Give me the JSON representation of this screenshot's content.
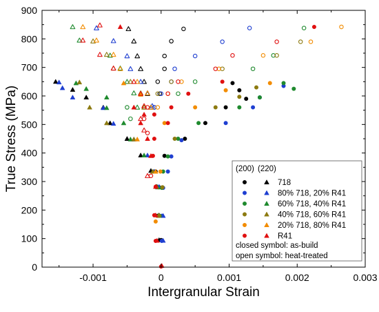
{
  "chart_data": {
    "type": "scatter",
    "xlabel": "Intergranular Strain",
    "ylabel": "True Stress (MPa)",
    "xlim": [
      -0.00175,
      0.003
    ],
    "ylim": [
      0,
      900
    ],
    "xticks": [
      -0.001,
      0,
      0.001,
      0.002,
      0.003
    ],
    "xtick_labels": [
      "-0.001",
      "0",
      "0.001",
      "0.002",
      "0.003"
    ],
    "yticks": [
      0,
      100,
      200,
      300,
      400,
      500,
      600,
      700,
      800,
      900
    ],
    "ytick_labels": [
      "0",
      "100",
      "200",
      "300",
      "400",
      "500",
      "600",
      "700",
      "800",
      "900"
    ],
    "grid": false,
    "legend_position": "bottom-right",
    "legend_header": [
      "(200)",
      "(220)"
    ],
    "legend_notes": [
      "closed symbol: as-build",
      "open symbol: heat-treated"
    ],
    "marker_meaning": {
      "circle": "(200)",
      "triangle": "(220)",
      "filled": "as-build",
      "open": "heat-treated"
    },
    "series": [
      {
        "name": "718",
        "color": "#000000",
        "filled": {
          "200": [
            [
              0.0,
              95
            ],
            [
              -5e-05,
              180
            ],
            [
              -3e-05,
              280
            ],
            [
              -8e-05,
              335
            ],
            [
              5e-05,
              390
            ],
            [
              0.00035,
              450
            ],
            [
              0.00065,
              505
            ],
            [
              0.00095,
              560
            ],
            [
              0.00125,
              590
            ],
            [
              0.00115,
              620
            ],
            [
              0.00105,
              645
            ]
          ],
          "220": [
            [
              -3e-05,
              95
            ],
            [
              -3e-05,
              182
            ],
            [
              -6e-05,
              282
            ],
            [
              -0.00015,
              338
            ],
            [
              -0.0003,
              392
            ],
            [
              -0.0005,
              450
            ],
            [
              -0.00075,
              505
            ],
            [
              -0.00085,
              560
            ],
            [
              -0.0011,
              595
            ],
            [
              -0.0013,
              622
            ],
            [
              -0.00155,
              650
            ]
          ]
        },
        "open": {
          "200": [
            [
              -0.0001,
              560
            ],
            [
              -2e-05,
              608
            ],
            [
              -5e-05,
              650
            ],
            [
              5e-05,
              695
            ],
            [
              5e-05,
              740
            ],
            [
              0.00015,
              792
            ],
            [
              0.00033,
              835
            ]
          ],
          "220": [
            [
              -0.00015,
              560
            ],
            [
              -0.0002,
              608
            ],
            [
              -0.00025,
              650
            ],
            [
              -0.0003,
              695
            ],
            [
              -0.00035,
              740
            ],
            [
              -0.0004,
              792
            ],
            [
              -0.00048,
              835
            ]
          ]
        }
      },
      {
        "name": "80% 718, 20% R41",
        "color": "#1f3fd1",
        "filled": {
          "200": [
            [
              1e-05,
              92
            ],
            [
              1e-05,
              180
            ],
            [
              3e-05,
              278
            ],
            [
              0.0001,
              335
            ],
            [
              0.00015,
              388
            ],
            [
              0.0003,
              445
            ],
            [
              0.00095,
              505
            ],
            [
              0.00135,
              560
            ],
            [
              0.00145,
              595
            ],
            [
              0.0018,
              635
            ]
          ],
          "220": [
            [
              3e-05,
              93
            ],
            [
              3e-05,
              180
            ],
            [
              -3e-05,
              282
            ],
            [
              -0.0001,
              335
            ],
            [
              -0.0002,
              392
            ],
            [
              -0.0004,
              448
            ],
            [
              -0.0007,
              503
            ],
            [
              -0.00085,
              558
            ],
            [
              -0.0013,
              595
            ],
            [
              -0.00145,
              628
            ],
            [
              -0.0015,
              648
            ]
          ]
        },
        "open": {
          "200": [
            [
              -0.0001,
              560
            ],
            [
              0.0,
              608
            ],
            [
              0.00015,
              650
            ],
            [
              0.0002,
              695
            ],
            [
              0.0005,
              740
            ],
            [
              0.0009,
              790
            ],
            [
              0.0013,
              838
            ]
          ],
          "220": [
            [
              -0.00013,
              565
            ],
            [
              -0.0002,
              610
            ],
            [
              -0.0003,
              650
            ],
            [
              -0.00045,
              695
            ],
            [
              -0.0005,
              740
            ],
            [
              -0.0007,
              793
            ],
            [
              -0.00095,
              838
            ]
          ]
        }
      },
      {
        "name": "60% 718, 40% R41",
        "color": "#1f8a2e",
        "filled": {
          "200": [
            [
              -2e-05,
              180
            ],
            [
              1e-05,
              278
            ],
            [
              3e-05,
              335
            ],
            [
              0.0001,
              388
            ],
            [
              0.00025,
              450
            ],
            [
              0.00055,
              505
            ],
            [
              0.00115,
              560
            ],
            [
              0.00145,
              595
            ],
            [
              0.00195,
              625
            ],
            [
              0.0018,
              645
            ]
          ],
          "220": [
            [
              -3e-05,
              180
            ],
            [
              -5e-05,
              280
            ],
            [
              -0.00012,
              335
            ],
            [
              -0.00025,
              392
            ],
            [
              -0.00045,
              448
            ],
            [
              -0.00055,
              505
            ],
            [
              -0.0008,
              558
            ],
            [
              -0.0008,
              595
            ],
            [
              -0.0011,
              625
            ],
            [
              -0.00125,
              645
            ]
          ]
        },
        "open": {
          "200": [
            [
              -0.00045,
              520
            ],
            [
              -0.0005,
              560
            ],
            [
              0.00025,
              608
            ],
            [
              0.0005,
              650
            ],
            [
              0.00135,
              695
            ],
            [
              0.00165,
              742
            ],
            [
              0.0021,
              838
            ]
          ],
          "220": [
            [
              -0.00035,
              560
            ],
            [
              -0.0004,
              610
            ],
            [
              -0.0005,
              650
            ],
            [
              -0.0006,
              697
            ],
            [
              -0.00075,
              742
            ],
            [
              -0.0012,
              795
            ],
            [
              -0.0013,
              842
            ]
          ]
        }
      },
      {
        "name": "40% 718, 60% R41",
        "color": "#8c7a10",
        "filled": {
          "200": [
            [
              -3e-05,
              180
            ],
            [
              2e-05,
              280
            ],
            [
              0.0002,
              450
            ],
            [
              0.0008,
              560
            ],
            [
              0.00115,
              597
            ],
            [
              0.0014,
              630
            ]
          ],
          "220": [
            [
              -4e-05,
              180
            ],
            [
              -7e-05,
              282
            ],
            [
              -0.00012,
              335
            ],
            [
              -0.0004,
              448
            ],
            [
              -0.0008,
              505
            ],
            [
              -0.00105,
              560
            ],
            [
              -0.0012,
              648
            ]
          ]
        },
        "open": {
          "200": [
            [
              -0.00025,
              560
            ],
            [
              -5e-05,
              608
            ],
            [
              0.00015,
              650
            ],
            [
              0.0009,
              695
            ],
            [
              0.0017,
              742
            ],
            [
              0.00205,
              790
            ]
          ],
          "220": [
            [
              -0.00025,
              560
            ],
            [
              -0.0003,
              610
            ],
            [
              -0.00045,
              650
            ],
            [
              -0.0007,
              697
            ],
            [
              -0.0008,
              745
            ],
            [
              -0.001,
              792
            ]
          ]
        }
      },
      {
        "name": "20% 718, 80% R41",
        "color": "#f28c00",
        "filled": {
          "200": [
            [
              -8e-05,
              160
            ],
            [
              -1e-05,
              335
            ],
            [
              5e-05,
              505
            ],
            [
              0.0005,
              560
            ],
            [
              0.00095,
              620
            ],
            [
              0.0016,
              645
            ]
          ],
          "220": [
            [
              -8e-05,
              335
            ],
            [
              -0.00035,
              448
            ],
            [
              -0.0003,
              605
            ],
            [
              -0.00055,
              645
            ]
          ]
        },
        "open": {
          "200": [
            [
              -5e-05,
              560
            ],
            [
              0.0001,
              608
            ],
            [
              0.0003,
              650
            ],
            [
              0.00085,
              695
            ],
            [
              0.0015,
              742
            ],
            [
              0.0022,
              790
            ],
            [
              0.00265,
              842
            ]
          ],
          "220": [
            [
              -0.00015,
              560
            ],
            [
              -0.0002,
              610
            ],
            [
              -0.00035,
              650
            ],
            [
              -0.0006,
              695
            ],
            [
              -0.0007,
              745
            ],
            [
              -0.00095,
              795
            ],
            [
              -0.00115,
              842
            ]
          ]
        }
      },
      {
        "name": "R41",
        "color": "#e01010",
        "filled": {
          "200": [
            [
              -8e-05,
              92
            ],
            [
              -0.0001,
              182
            ],
            [
              -8e-05,
              282
            ],
            [
              -0.00012,
              390
            ],
            [
              -0.0001,
              450
            ],
            [
              0.0001,
              505
            ],
            [
              -0.0001,
              535
            ],
            [
              0.00015,
              560
            ],
            [
              0.0004,
              608
            ],
            [
              0.0009,
              650
            ],
            [
              0.00225,
              842
            ],
            [
              0.0,
              2
            ]
          ],
          "220": [
            [
              -6e-05,
              93
            ],
            [
              -8e-05,
              182
            ],
            [
              -8e-05,
              282
            ],
            [
              -0.00015,
              390
            ],
            [
              -0.0002,
              450
            ],
            [
              -0.0003,
              505
            ],
            [
              -0.00025,
              535
            ],
            [
              -0.0004,
              560
            ],
            [
              -0.0006,
              842
            ],
            [
              1e-05,
              5
            ]
          ]
        },
        "open": {
          "200": [
            [
              -0.00015,
              320
            ],
            [
              -0.0002,
              470
            ],
            [
              -0.00025,
              520
            ],
            [
              -0.0002,
              560
            ],
            [
              0.0001,
              608
            ],
            [
              0.00025,
              650
            ],
            [
              0.0008,
              695
            ],
            [
              0.00105,
              742
            ],
            [
              0.0017,
              790
            ]
          ],
          "220": [
            [
              -0.0002,
              320
            ],
            [
              -0.00025,
              480
            ],
            [
              -0.0003,
              520
            ],
            [
              -0.00025,
              565
            ],
            [
              -0.0003,
              608
            ],
            [
              -0.0004,
              650
            ],
            [
              -0.0007,
              697
            ],
            [
              -0.0009,
              745
            ],
            [
              -0.00115,
              795
            ],
            [
              -0.0009,
              848
            ]
          ]
        }
      }
    ]
  }
}
